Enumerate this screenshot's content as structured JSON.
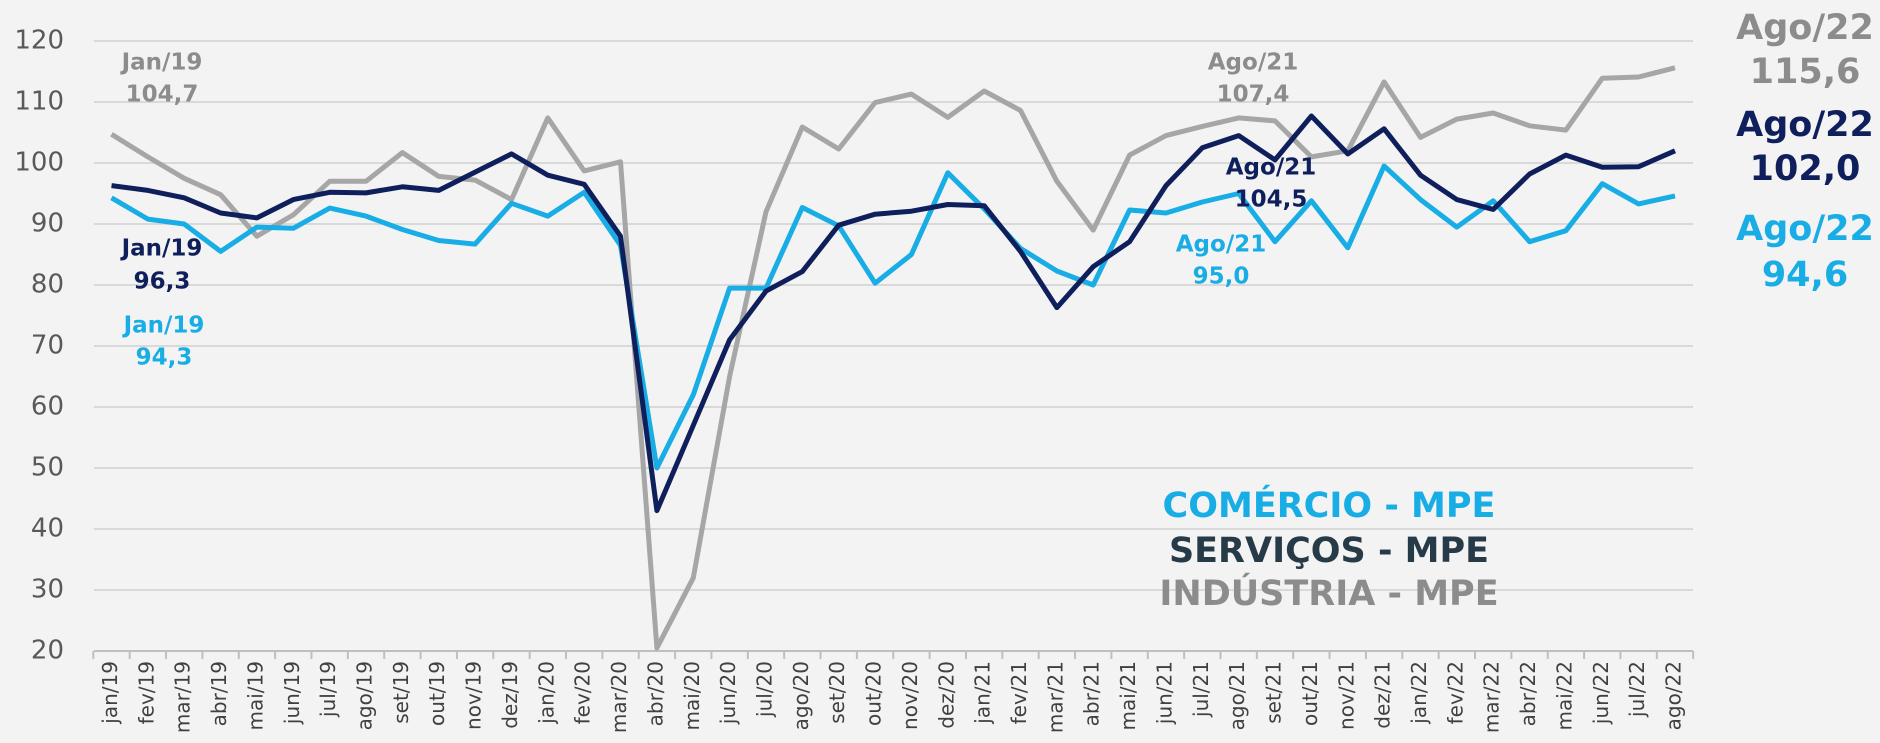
{
  "chart_data": {
    "type": "line",
    "categories": [
      "jan/19",
      "fev/19",
      "mar/19",
      "abr/19",
      "mai/19",
      "jun/19",
      "jul/19",
      "ago/19",
      "set/19",
      "out/19",
      "nov/19",
      "dez/19",
      "jan/20",
      "fev/20",
      "mar/20",
      "abr/20",
      "mai/20",
      "jun/20",
      "jul/20",
      "ago/20",
      "set/20",
      "out/20",
      "nov/20",
      "dez/20",
      "jan/21",
      "fev/21",
      "mar/21",
      "abr/21",
      "mai/21",
      "jun/21",
      "jul/21",
      "ago/21",
      "set/21",
      "out/21",
      "nov/21",
      "dez/21",
      "jan/22",
      "fev/22",
      "mar/22",
      "abr/22",
      "mai/22",
      "jun/22",
      "jul/22",
      "ago/22"
    ],
    "series": [
      {
        "name": "COMÉRCIO - MPE",
        "color": "#19ade6",
        "legend_color": "#19ade6",
        "values": [
          94.3,
          90.8,
          90.0,
          85.5,
          89.5,
          89.3,
          92.6,
          91.3,
          89.1,
          87.3,
          86.7,
          93.4,
          91.3,
          95.2,
          86.5,
          50,
          62,
          79.5,
          79.5,
          92.7,
          89.7,
          80.3,
          85,
          98.4,
          92.5,
          86,
          82.3,
          80,
          92.3,
          91.8,
          93.6,
          95.0,
          87.1,
          93.8,
          86.1,
          99.5,
          94,
          89.5,
          93.8,
          87.1,
          88.9,
          96.6,
          93.3,
          94.6
        ]
      },
      {
        "name": "SERVIÇOS - MPE",
        "color": "#0f1f5c",
        "legend_color": "#263a47",
        "values": [
          96.3,
          95.5,
          94.3,
          91.8,
          91.0,
          94.0,
          95.2,
          95.1,
          96.1,
          95.5,
          98.5,
          101.5,
          98.0,
          96.5,
          88,
          43,
          57,
          71,
          79,
          82.2,
          89.8,
          91.6,
          92.1,
          93.2,
          93.0,
          85.5,
          76.3,
          83,
          87.1,
          96.3,
          102.5,
          104.5,
          100.5,
          107.7,
          101.5,
          105.6,
          98,
          94,
          92.4,
          98.2,
          101.3,
          99.3,
          99.4,
          102.0
        ]
      },
      {
        "name": "INDÚSTRIA - MPE",
        "color": "#a6a6a6",
        "legend_color": "#8c8c8c",
        "values": [
          104.7,
          101,
          97.5,
          94.8,
          88,
          91.5,
          97,
          97,
          101.7,
          97.8,
          97.2,
          94,
          107.4,
          98.7,
          100.2,
          20.5,
          32,
          65,
          92,
          105.9,
          102.3,
          109.9,
          111.3,
          107.5,
          111.8,
          108.6,
          97,
          89,
          101.3,
          104.5,
          106,
          107.4,
          106.9,
          101,
          102,
          113.3,
          104.2,
          107.2,
          108.2,
          106.1,
          105.4,
          113.9,
          114.1,
          115.6
        ]
      }
    ],
    "ylim": [
      20,
      120
    ],
    "yticks": [
      20,
      30,
      40,
      50,
      60,
      70,
      80,
      90,
      100,
      110,
      120
    ],
    "grid": true,
    "annotations": [
      {
        "lines": [
          "Jan/19",
          "104,7"
        ],
        "color": "#8c8c8c"
      },
      {
        "lines": [
          "Jan/19",
          "96,3"
        ],
        "color": "#0f1f5c"
      },
      {
        "lines": [
          "Jan/19",
          "94,3"
        ],
        "color": "#19ade6"
      },
      {
        "lines": [
          "Ago/21",
          "107,4"
        ],
        "color": "#8c8c8c"
      },
      {
        "lines": [
          "Ago/21",
          "104,5"
        ],
        "color": "#0f1f5c"
      },
      {
        "lines": [
          "Ago/21",
          "95,0"
        ],
        "color": "#19ade6"
      },
      {
        "lines": [
          "Ago/22",
          "115,6"
        ],
        "color": "#8c8c8c"
      },
      {
        "lines": [
          "Ago/22",
          "102,0"
        ],
        "color": "#0f1f5c"
      },
      {
        "lines": [
          "Ago/22",
          "94,6"
        ],
        "color": "#19ade6"
      }
    ]
  }
}
